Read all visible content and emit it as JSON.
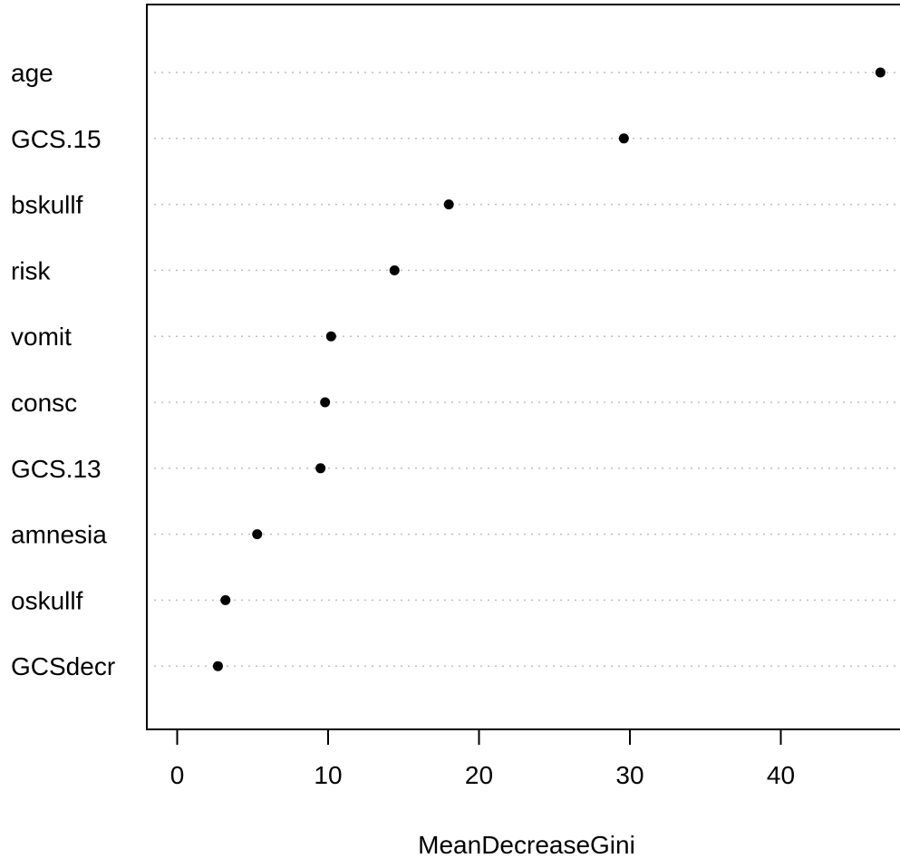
{
  "chart_data": {
    "type": "scatter",
    "subtype": "dotchart",
    "title": "",
    "xlabel": "MeanDecreaseGini",
    "ylabel": "",
    "xlim": [
      -2.0,
      48.0
    ],
    "xticks": [
      0,
      10,
      20,
      30,
      40
    ],
    "grid": "dotted horizontal guide lines",
    "categories": [
      "age",
      "GCS.15",
      "bskullf",
      "risk",
      "vomit",
      "consc",
      "GCS.13",
      "amnesia",
      "oskullf",
      "GCSdecr"
    ],
    "values": [
      46.6,
      29.6,
      18.0,
      14.4,
      10.2,
      9.8,
      9.5,
      5.3,
      3.2,
      2.7
    ],
    "colors": {
      "point": "#000000",
      "guide": "#bebebe",
      "axis": "#000000"
    }
  }
}
